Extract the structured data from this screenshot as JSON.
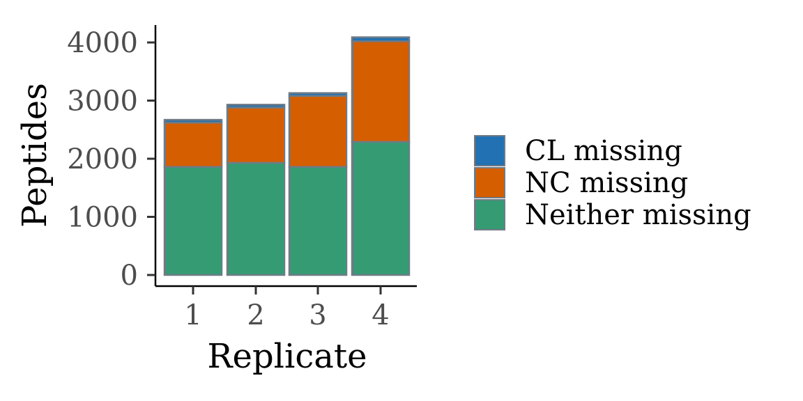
{
  "chart_data": {
    "type": "bar",
    "stacked": true,
    "title": "",
    "xlabel": "Replicate",
    "ylabel": "Peptides",
    "categories": [
      "1",
      "2",
      "3",
      "4"
    ],
    "ylim": [
      0,
      4100
    ],
    "yticks": [
      0,
      1000,
      2000,
      3000,
      4000
    ],
    "grid": false,
    "legend_position": "right",
    "series": [
      {
        "name": "Neither missing",
        "color": "#359B73",
        "values": [
          1860,
          1930,
          1860,
          2290
        ]
      },
      {
        "name": "NC missing",
        "color": "#D55E00",
        "values": [
          760,
          950,
          1220,
          1730
        ]
      },
      {
        "name": "CL missing",
        "color": "#2271B2",
        "values": [
          50,
          50,
          50,
          70
        ]
      }
    ],
    "legend_order": [
      "CL missing",
      "NC missing",
      "Neither missing"
    ]
  }
}
